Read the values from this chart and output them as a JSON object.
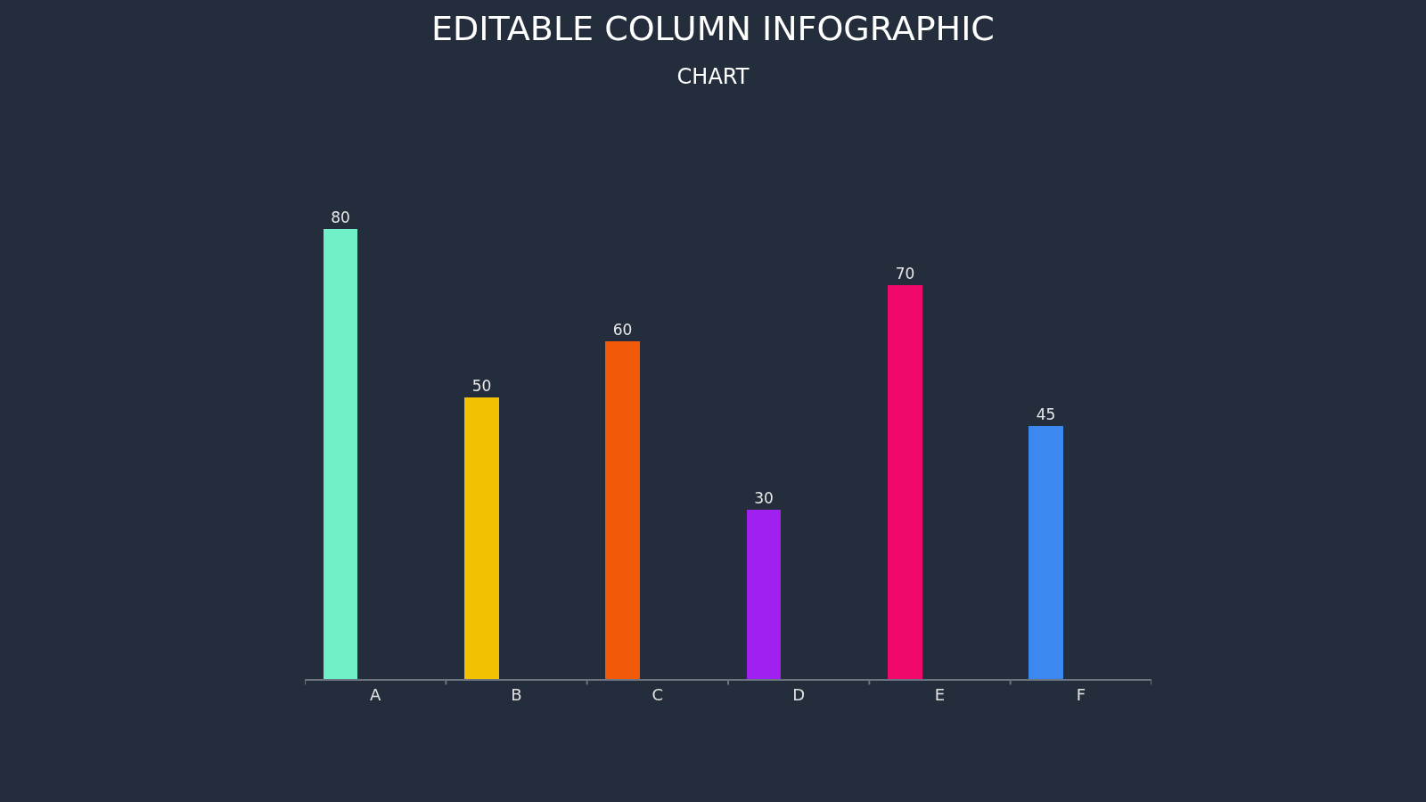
{
  "chart_data": {
    "type": "bar",
    "title": "EDITABLE COLUMN INFOGRAPHIC",
    "subtitle": "CHART",
    "categories": [
      "A",
      "B",
      "C",
      "D",
      "E",
      "F"
    ],
    "values": [
      80,
      50,
      60,
      30,
      70,
      45
    ],
    "colors": [
      "#6ff0c8",
      "#f2c200",
      "#f25a0a",
      "#a020f0",
      "#f0086a",
      "#3a88f0"
    ],
    "data_labels": true,
    "grid": false,
    "legend": false,
    "tick_labels": "x"
  }
}
